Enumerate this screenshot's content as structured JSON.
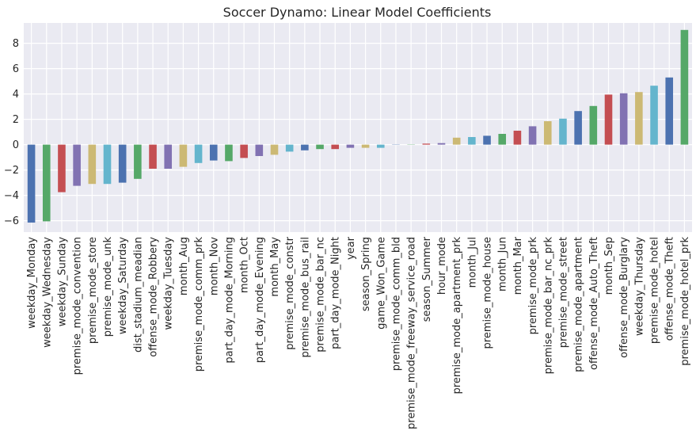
{
  "chart_data": {
    "type": "bar",
    "title": "Soccer Dynamo: Linear Model Coefficients",
    "xlabel": "",
    "ylabel": "",
    "ylim": [
      -6.9,
      9.6
    ],
    "yticks": [
      -6,
      -4,
      -2,
      0,
      2,
      4,
      6,
      8
    ],
    "grid": true,
    "legend": "none",
    "categories": [
      "weekday_Monday",
      "weekday_Wednesday",
      "weekday_Sunday",
      "premise_mode_convention",
      "premise_mode_store",
      "premise_mode_unk",
      "weekday_Saturday",
      "dist_stadium_meadian",
      "offense_mode_Robbery",
      "weekday_Tuesday",
      "month_Aug",
      "premise_mode_comm_prk",
      "month_Nov",
      "part_day_mode_Morning",
      "month_Oct",
      "part_day_mode_Evening",
      "month_May",
      "premise_mode_constr",
      "premise_mode_bus_rail",
      "premise_mode_bar_nc",
      "part_day_mode_Night",
      "year",
      "season_Spring",
      "game_Won_Game",
      "premise_mode_comm_bld",
      "premise_mode_freeway_service_road",
      "season_Summer",
      "hour_mode",
      "premise_mode_apartment_prk",
      "month_Jul",
      "premise_mode_house",
      "month_Jun",
      "month_Mar",
      "premise_mode_prk",
      "premise_mode_bar_nc_prk",
      "premise_mode_street",
      "premise_mode_apartment",
      "offense_mode_Auto_Theft",
      "month_Sep",
      "offense_mode_Burglary",
      "weekday_Thursday",
      "premise_mode_hotel",
      "offense_mode_Theft",
      "premise_mode_hotel_prk"
    ],
    "values": [
      -6.15,
      -6.05,
      -3.75,
      -3.25,
      -3.1,
      -3.1,
      -3.0,
      -2.7,
      -1.9,
      -1.9,
      -1.75,
      -1.45,
      -1.25,
      -1.3,
      -1.05,
      -0.9,
      -0.8,
      -0.55,
      -0.45,
      -0.35,
      -0.35,
      -0.25,
      -0.25,
      -0.25,
      -0.02,
      0.02,
      0.08,
      0.12,
      0.55,
      0.6,
      0.7,
      0.85,
      1.1,
      1.45,
      1.85,
      2.05,
      2.65,
      3.05,
      3.95,
      4.05,
      4.15,
      4.65,
      5.3,
      9.05
    ],
    "colors": [
      "#4c72b0",
      "#55a868",
      "#c44e52",
      "#8172b2",
      "#ccb974",
      "#64b5cd"
    ],
    "plot_background": "#eaeaf2",
    "grid_color": "#ffffff"
  }
}
